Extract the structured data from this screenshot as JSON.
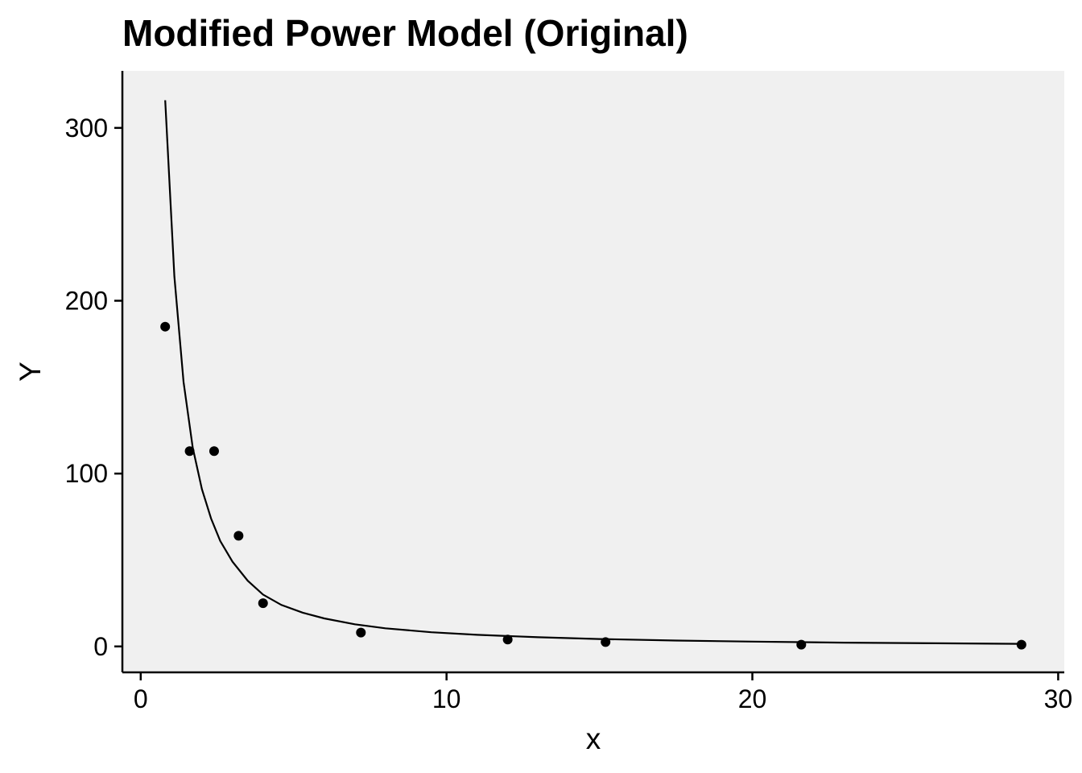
{
  "chart_data": {
    "type": "scatter",
    "title": "Modified Power Model (Original)",
    "xlabel": "x",
    "ylabel": "Y",
    "xlim": [
      -0.6,
      30.2
    ],
    "ylim": [
      -15,
      333
    ],
    "x_ticks": [
      0,
      10,
      20,
      30
    ],
    "y_ticks": [
      0,
      100,
      200,
      300
    ],
    "grid": false,
    "legend": "none",
    "panel_background": "#f0f0f0",
    "point_color": "#000000",
    "line_color": "#000000",
    "series": [
      {
        "type": "scatter",
        "x": [
          0.8,
          1.6,
          2.4,
          3.2,
          4.0,
          7.2,
          12.0,
          15.2,
          21.6,
          28.8
        ],
        "y": [
          185,
          113,
          113,
          64,
          25,
          8,
          4,
          2.5,
          1,
          1
        ]
      },
      {
        "type": "line",
        "x": [
          0.8,
          1.1,
          1.4,
          1.7,
          2.0,
          2.3,
          2.6,
          3.0,
          3.5,
          4.0,
          4.6,
          5.3,
          6.0,
          7.0,
          8.0,
          9.5,
          11.0,
          13.0,
          15.0,
          17.5,
          20.0,
          23.0,
          26.0,
          28.8
        ],
        "y": [
          316,
          214,
          153,
          115,
          91,
          74,
          61,
          49,
          38,
          30,
          24,
          19.5,
          16.2,
          12.8,
          10.5,
          8.2,
          6.7,
          5.3,
          4.3,
          3.4,
          2.8,
          2.2,
          1.8,
          1.5
        ]
      }
    ]
  }
}
